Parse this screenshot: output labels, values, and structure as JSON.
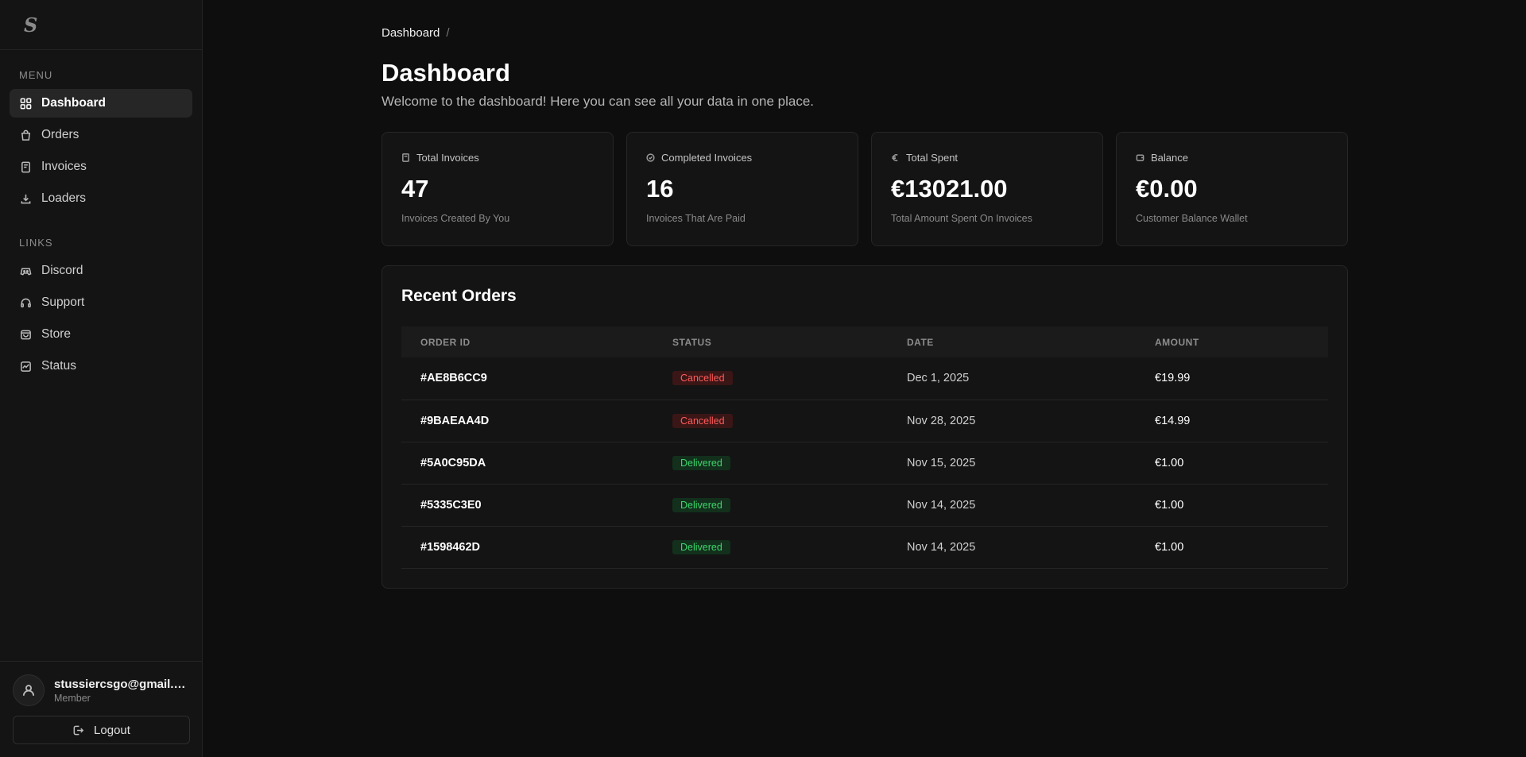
{
  "brand": {
    "logo": "S"
  },
  "sidebar": {
    "menu_title": "MENU",
    "menu_items": [
      {
        "label": "Dashboard",
        "icon": "grid-icon",
        "active": true
      },
      {
        "label": "Orders",
        "icon": "bag-icon"
      },
      {
        "label": "Invoices",
        "icon": "receipt-icon"
      },
      {
        "label": "Loaders",
        "icon": "download-icon"
      }
    ],
    "links_title": "LINKS",
    "link_items": [
      {
        "label": "Discord",
        "icon": "gamepad-icon"
      },
      {
        "label": "Support",
        "icon": "headset-icon"
      },
      {
        "label": "Store",
        "icon": "store-icon"
      },
      {
        "label": "Status",
        "icon": "activity-icon"
      }
    ],
    "user": {
      "email": "stussiercsgo@gmail.com",
      "role": "Member"
    },
    "logout_label": "Logout"
  },
  "header": {
    "breadcrumb": "Dashboard",
    "breadcrumb_sep": "/",
    "title": "Dashboard",
    "subtitle": "Welcome to the dashboard! Here you can see all your data in one place."
  },
  "stats": [
    {
      "label": "Total Invoices",
      "value": "47",
      "desc": "Invoices Created By You",
      "icon": "document-icon"
    },
    {
      "label": "Completed Invoices",
      "value": "16",
      "desc": "Invoices That Are Paid",
      "icon": "check-circle-icon"
    },
    {
      "label": "Total Spent",
      "value": "€13021.00",
      "desc": "Total Amount Spent On Invoices",
      "icon": "euro-icon"
    },
    {
      "label": "Balance",
      "value": "€0.00",
      "desc": "Customer Balance Wallet",
      "icon": "wallet-icon"
    }
  ],
  "orders": {
    "title": "Recent Orders",
    "columns": [
      "ORDER ID",
      "STATUS",
      "DATE",
      "AMOUNT"
    ],
    "rows": [
      {
        "id": "#AE8B6CC9",
        "status": "Cancelled",
        "date": "Dec 1, 2025",
        "amount": "€19.99"
      },
      {
        "id": "#9BAEAA4D",
        "status": "Cancelled",
        "date": "Nov 28, 2025",
        "amount": "€14.99"
      },
      {
        "id": "#5A0C95DA",
        "status": "Delivered",
        "date": "Nov 15, 2025",
        "amount": "€1.00"
      },
      {
        "id": "#5335C3E0",
        "status": "Delivered",
        "date": "Nov 14, 2025",
        "amount": "€1.00"
      },
      {
        "id": "#1598462D",
        "status": "Delivered",
        "date": "Nov 14, 2025",
        "amount": "€1.00"
      }
    ]
  },
  "colors": {
    "background": "#0e0e0e",
    "panel": "#141414",
    "cancelled": "#ff5b5b",
    "delivered": "#3fd46b"
  }
}
